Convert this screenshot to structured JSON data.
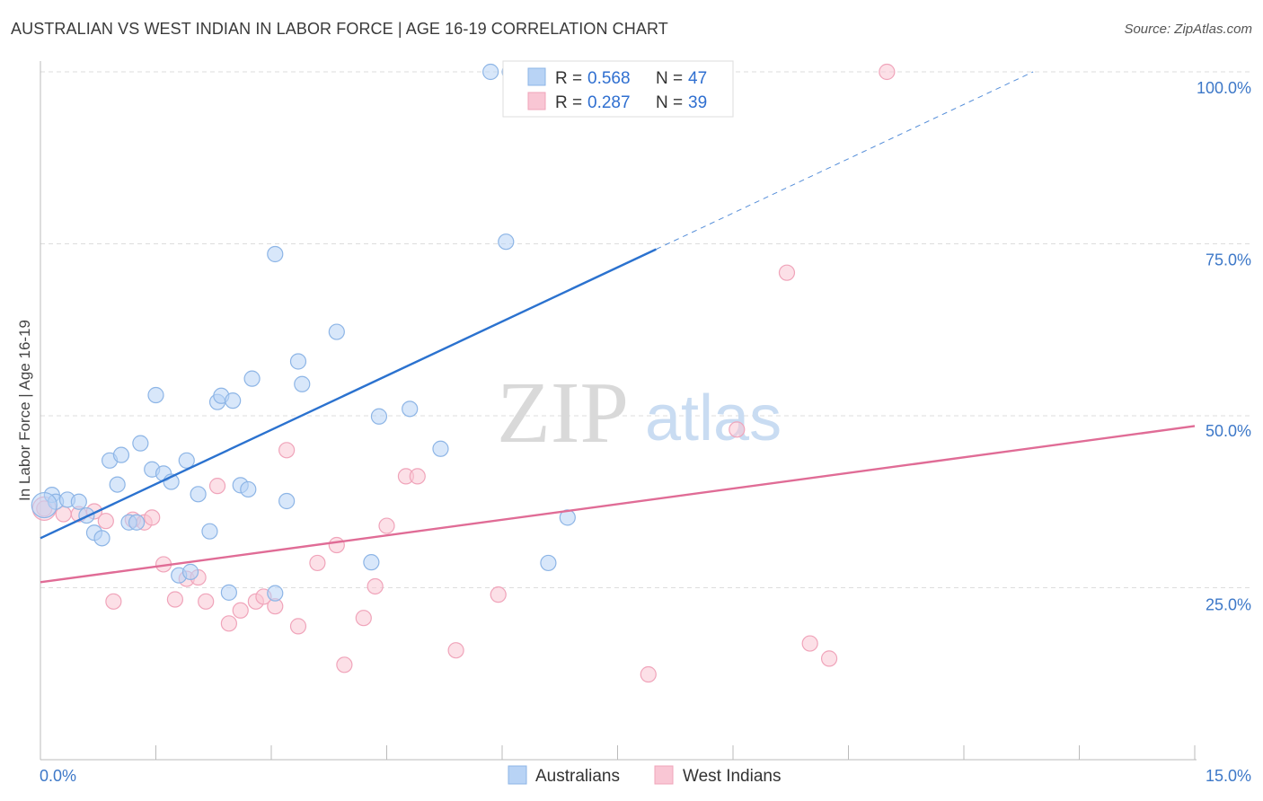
{
  "title": "AUSTRALIAN VS WEST INDIAN IN LABOR FORCE | AGE 16-19 CORRELATION CHART",
  "source": "Source: ZipAtlas.com",
  "watermark": {
    "zip": "ZIP",
    "atlas": "atlas"
  },
  "colors": {
    "blue_fill": "#b8d3f5",
    "blue_stroke": "#8db5e6",
    "blue_line": "#2b72cf",
    "pink_fill": "#f9c6d4",
    "pink_stroke": "#f0a4ba",
    "pink_line": "#e06c96",
    "grid": "#dddddd",
    "tick_text": "#3d78c8"
  },
  "legend": {
    "rows": [
      {
        "r_label": "R = ",
        "r_value": "0.568",
        "n_label": "N = ",
        "n_value": "47"
      },
      {
        "r_label": "R = ",
        "r_value": "0.287",
        "n_label": "N = ",
        "n_value": "39"
      }
    ]
  },
  "chart_data": {
    "type": "scatter",
    "title": "AUSTRALIAN VS WEST INDIAN IN LABOR FORCE | AGE 16-19 CORRELATION CHART",
    "xlabel": "",
    "ylabel": "In Labor Force | Age 16-19",
    "xlim": [
      0,
      15
    ],
    "ylim": [
      0,
      100
    ],
    "x_tick_labels": [
      "0.0%",
      "15.0%"
    ],
    "y_ticks": [
      25,
      50,
      75,
      100
    ],
    "y_tick_labels": [
      "25.0%",
      "50.0%",
      "75.0%",
      "100.0%"
    ],
    "grid": true,
    "series": [
      {
        "name": "Australians",
        "r": 0.568,
        "n": 47,
        "trend": {
          "x0": 0,
          "y0": 32.2,
          "x1": 8.0,
          "y1": 74.2,
          "dash_to_x": 12.9,
          "dash_to_y": 100
        },
        "points": [
          [
            0.15,
            38.5
          ],
          [
            0.2,
            37.5
          ],
          [
            0.35,
            37.8
          ],
          [
            0.5,
            37.5
          ],
          [
            0.6,
            35.5
          ],
          [
            0.7,
            33.0
          ],
          [
            0.8,
            32.2
          ],
          [
            0.9,
            43.5
          ],
          [
            1.0,
            40.0
          ],
          [
            1.05,
            44.3
          ],
          [
            1.15,
            34.5
          ],
          [
            1.25,
            34.5
          ],
          [
            1.3,
            46.0
          ],
          [
            1.45,
            42.2
          ],
          [
            1.5,
            53.0
          ],
          [
            1.6,
            41.6
          ],
          [
            1.7,
            40.4
          ],
          [
            1.9,
            43.5
          ],
          [
            1.8,
            26.8
          ],
          [
            1.95,
            27.3
          ],
          [
            2.05,
            38.6
          ],
          [
            2.2,
            33.2
          ],
          [
            2.3,
            52.0
          ],
          [
            2.35,
            52.9
          ],
          [
            2.45,
            24.3
          ],
          [
            2.5,
            52.2
          ],
          [
            2.6,
            39.9
          ],
          [
            2.7,
            39.3
          ],
          [
            2.75,
            55.4
          ],
          [
            3.05,
            24.2
          ],
          [
            3.05,
            73.5
          ],
          [
            3.2,
            37.6
          ],
          [
            3.35,
            57.9
          ],
          [
            3.4,
            54.6
          ],
          [
            3.85,
            62.2
          ],
          [
            4.3,
            28.7
          ],
          [
            4.4,
            49.9
          ],
          [
            4.8,
            51.0
          ],
          [
            5.2,
            45.2
          ],
          [
            5.85,
            100
          ],
          [
            6.1,
            100
          ],
          [
            6.05,
            75.3
          ],
          [
            6.6,
            28.6
          ],
          [
            6.85,
            35.2
          ]
        ]
      },
      {
        "name": "West Indians",
        "r": 0.287,
        "n": 39,
        "trend": {
          "x0": 0,
          "y0": 25.8,
          "x1": 15,
          "y1": 48.5
        },
        "points": [
          [
            0.05,
            36.5
          ],
          [
            0.3,
            35.7
          ],
          [
            0.5,
            35.7
          ],
          [
            0.7,
            36.1
          ],
          [
            0.85,
            34.7
          ],
          [
            0.95,
            23.0
          ],
          [
            1.2,
            34.9
          ],
          [
            1.35,
            34.5
          ],
          [
            1.45,
            35.2
          ],
          [
            1.6,
            28.4
          ],
          [
            1.75,
            23.3
          ],
          [
            1.9,
            26.3
          ],
          [
            2.05,
            26.5
          ],
          [
            2.15,
            23.0
          ],
          [
            2.3,
            39.8
          ],
          [
            2.45,
            19.8
          ],
          [
            2.6,
            21.7
          ],
          [
            2.8,
            23.0
          ],
          [
            2.9,
            23.7
          ],
          [
            3.05,
            22.3
          ],
          [
            3.2,
            45.0
          ],
          [
            3.35,
            19.4
          ],
          [
            3.6,
            28.6
          ],
          [
            3.85,
            31.2
          ],
          [
            3.95,
            13.8
          ],
          [
            4.2,
            20.6
          ],
          [
            4.35,
            25.2
          ],
          [
            4.5,
            34.0
          ],
          [
            4.75,
            41.2
          ],
          [
            4.9,
            41.2
          ],
          [
            5.4,
            15.9
          ],
          [
            5.95,
            24.0
          ],
          [
            7.9,
            12.4
          ],
          [
            9.05,
            48.0
          ],
          [
            9.7,
            70.8
          ],
          [
            10.0,
            16.9
          ],
          [
            10.25,
            14.7
          ],
          [
            11.0,
            100
          ]
        ]
      }
    ]
  },
  "bottom_legend": {
    "australians": "Australians",
    "west_indians": "West Indians"
  }
}
